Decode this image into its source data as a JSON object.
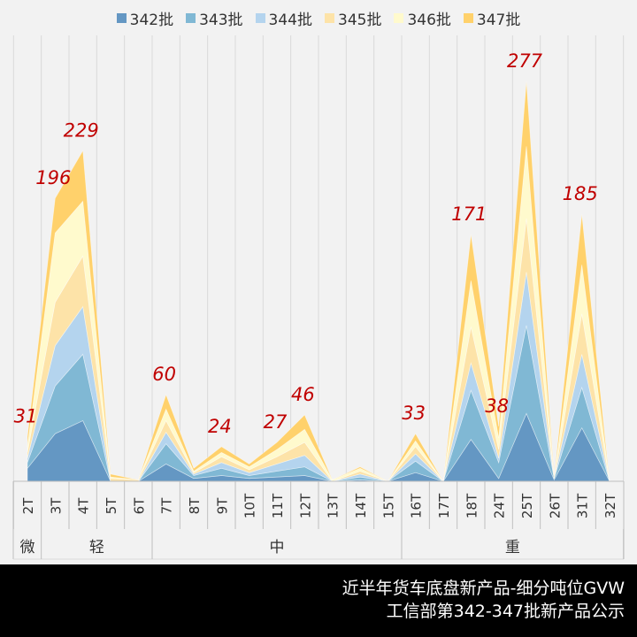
{
  "chart_data": {
    "type": "area",
    "stacked": true,
    "categories": [
      "2T",
      "3T",
      "4T",
      "5T",
      "6T",
      "7T",
      "8T",
      "9T",
      "10T",
      "11T",
      "12T",
      "13T",
      "14T",
      "15T",
      "16T",
      "17T",
      "18T",
      "24T",
      "25T",
      "26T",
      "31T",
      "32T"
    ],
    "groups": [
      {
        "label": "微",
        "from": "2T",
        "to": "2T"
      },
      {
        "label": "轻",
        "from": "3T",
        "to": "6T"
      },
      {
        "label": "中",
        "from": "7T",
        "to": "15T"
      },
      {
        "label": "重",
        "from": "16T",
        "to": "32T"
      }
    ],
    "series": [
      {
        "name": "342批",
        "color": "#6497c3",
        "values": [
          9,
          33,
          42,
          0,
          0,
          12,
          2,
          4,
          2,
          3,
          4,
          0,
          1,
          0,
          6,
          0,
          29,
          2,
          47,
          1,
          37,
          0
        ]
      },
      {
        "name": "343批",
        "color": "#80b8d4",
        "values": [
          4,
          33,
          46,
          0,
          0,
          14,
          2,
          5,
          2,
          4,
          6,
          0,
          2,
          0,
          8,
          0,
          34,
          11,
          61,
          1,
          28,
          0
        ]
      },
      {
        "name": "344批",
        "color": "#b4d4ee",
        "values": [
          3,
          28,
          33,
          0,
          0,
          8,
          1,
          4,
          2,
          5,
          8,
          0,
          2,
          0,
          5,
          0,
          19,
          3,
          37,
          0,
          23,
          0
        ]
      },
      {
        "name": "345批",
        "color": "#fde3a8",
        "values": [
          4,
          30,
          35,
          2,
          1,
          8,
          1,
          4,
          2,
          5,
          9,
          0,
          2,
          0,
          5,
          0,
          25,
          6,
          37,
          0,
          28,
          0
        ]
      },
      {
        "name": "346批",
        "color": "#fffacd",
        "values": [
          4,
          48,
          38,
          1,
          0,
          8,
          1,
          3,
          2,
          5,
          9,
          1,
          2,
          0,
          4,
          0,
          32,
          8,
          50,
          0,
          34,
          0
        ]
      },
      {
        "name": "347批",
        "color": "#ffd16b",
        "values": [
          7,
          24,
          35,
          2,
          0,
          10,
          2,
          4,
          2,
          5,
          10,
          0,
          1,
          0,
          5,
          0,
          32,
          8,
          45,
          1,
          35,
          0
        ]
      }
    ],
    "data_labels": [
      {
        "category": "2T",
        "value": "31"
      },
      {
        "category": "3T",
        "value": "196"
      },
      {
        "category": "4T",
        "value": "229"
      },
      {
        "category": "7T",
        "value": "60"
      },
      {
        "category": "9T",
        "value": "24"
      },
      {
        "category": "11T",
        "value": "27"
      },
      {
        "category": "12T",
        "value": "46"
      },
      {
        "category": "16T",
        "value": "33"
      },
      {
        "category": "18T",
        "value": "171"
      },
      {
        "category": "24T",
        "value": "38"
      },
      {
        "category": "25T",
        "value": "277"
      },
      {
        "category": "31T",
        "value": "185"
      }
    ],
    "legend_position": "top",
    "label_color": "#c00000"
  },
  "footer": {
    "line1": "近半年货车底盘新产品-细分吨位GVW",
    "line2": "工信部第342-347批新产品公示"
  }
}
